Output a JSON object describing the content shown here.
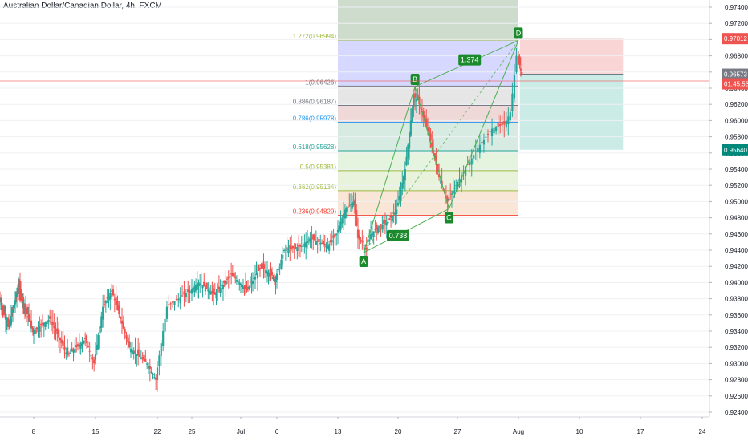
{
  "chart_data": {
    "type": "candlestick",
    "title": "Australian Dollar/Canadian Dollar, 4h, FXCM",
    "x_ticks": [
      "8",
      "15",
      "22",
      "25",
      "Jul",
      "6",
      "13",
      "20",
      "27",
      "Aug",
      "10",
      "17",
      "24"
    ],
    "y_ticks": [
      "0.97400",
      "0.97200",
      "0.97000",
      "0.96800",
      "0.96600",
      "0.96400",
      "0.96200",
      "0.96000",
      "0.95800",
      "0.95600",
      "0.95400",
      "0.95200",
      "0.95000",
      "0.94800",
      "0.94600",
      "0.94400",
      "0.94200",
      "0.94000",
      "0.93800",
      "0.93600",
      "0.93400",
      "0.93200",
      "0.93000",
      "0.92800",
      "0.92600",
      "0.92400"
    ],
    "ylim": [
      0.9232,
      0.9752
    ],
    "price_path": [
      {
        "x": "Jun 1",
        "y": 0.938
      },
      {
        "x": "Jun 3",
        "y": 0.9345
      },
      {
        "x": "Jun 5",
        "y": 0.9395
      },
      {
        "x": "Jun 8",
        "y": 0.934
      },
      {
        "x": "Jun 10",
        "y": 0.9355
      },
      {
        "x": "Jun 12",
        "y": 0.931
      },
      {
        "x": "Jun 14",
        "y": 0.933
      },
      {
        "x": "Jun 15",
        "y": 0.93
      },
      {
        "x": "Jun 16",
        "y": 0.937
      },
      {
        "x": "Jun 17",
        "y": 0.939
      },
      {
        "x": "Jun 19",
        "y": 0.932
      },
      {
        "x": "Jun 21",
        "y": 0.93
      },
      {
        "x": "Jun 22",
        "y": 0.928
      },
      {
        "x": "Jun 23",
        "y": 0.937
      },
      {
        "x": "Jun 24",
        "y": 0.938
      },
      {
        "x": "Jun 26",
        "y": 0.94
      },
      {
        "x": "Jun 28",
        "y": 0.9385
      },
      {
        "x": "Jun 30",
        "y": 0.941
      },
      {
        "x": "Jul 2",
        "y": 0.939
      },
      {
        "x": "Jul 4",
        "y": 0.942
      },
      {
        "x": "Jul 6",
        "y": 0.9405
      },
      {
        "x": "Jul 7",
        "y": 0.944
      },
      {
        "x": "Jul 9",
        "y": 0.9445
      },
      {
        "x": "Jul 10",
        "y": 0.9455
      },
      {
        "x": "Jul 12",
        "y": 0.9445
      },
      {
        "x": "Jul 13",
        "y": 0.946
      },
      {
        "x": "Jul 14",
        "y": 0.949
      },
      {
        "x": "Jul 15",
        "y": 0.95
      },
      {
        "x": "Jul 15.5",
        "y": 0.9455
      },
      {
        "x": "Jul 16",
        "y": 0.945
      },
      {
        "x": "Jul 16.5",
        "y": 0.944
      },
      {
        "x": "Jul 17",
        "y": 0.946
      },
      {
        "x": "Jul 18",
        "y": 0.947
      },
      {
        "x": "Jul 19",
        "y": 0.9475
      },
      {
        "x": "Jul 20",
        "y": 0.949
      },
      {
        "x": "Jul 21",
        "y": 0.954
      },
      {
        "x": "Jul 22",
        "y": 0.963
      },
      {
        "x": "Jul 22.5",
        "y": 0.9625
      },
      {
        "x": "Jul 23",
        "y": 0.961
      },
      {
        "x": "Jul 24",
        "y": 0.9575
      },
      {
        "x": "Jul 25",
        "y": 0.953
      },
      {
        "x": "Jul 26",
        "y": 0.95
      },
      {
        "x": "Jul 27",
        "y": 0.952
      },
      {
        "x": "Jul 28",
        "y": 0.9545
      },
      {
        "x": "Jul 29",
        "y": 0.957
      },
      {
        "x": "Jul 30",
        "y": 0.959
      },
      {
        "x": "Jul 31",
        "y": 0.9595
      },
      {
        "x": "Jul 31.5",
        "y": 0.961
      },
      {
        "x": "Aug 1",
        "y": 0.968
      },
      {
        "x": "Aug 1.3",
        "y": 0.967
      },
      {
        "x": "Aug 1.6",
        "y": 0.9657
      }
    ],
    "harmonic_points": [
      {
        "label": "A",
        "x": "Jul 16",
        "y": 0.9437
      },
      {
        "label": "B",
        "x": "Jul 22",
        "y": 0.9642
      },
      {
        "label": "C",
        "x": "Jul 26",
        "y": 0.9491
      },
      {
        "label": "D",
        "x": "Aug 1",
        "y": 0.9699
      }
    ],
    "ratio_labels": [
      {
        "text": "1.374",
        "x": "Jul 28",
        "y": 0.9675
      },
      {
        "text": "0.738",
        "x": "Jul 20",
        "y": 0.9458
      }
    ],
    "fib_levels": [
      {
        "label": "1.272(0.96994)",
        "value": 0.96994,
        "color": "#9fbc3f"
      },
      {
        "label": "1(0.96426)",
        "value": 0.96426,
        "color": "#787b86"
      },
      {
        "label": "0.886(0.96187)",
        "value": 0.96187,
        "color": "#787b86"
      },
      {
        "label": "0.786(0.95978)",
        "value": 0.95978,
        "color": "#2196f3"
      },
      {
        "label": "0.618(0.95628)",
        "value": 0.95628,
        "color": "#26a69a"
      },
      {
        "label": "0.5(0.95381)",
        "value": 0.95381,
        "color": "#9fbc3f"
      },
      {
        "label": "0.382(0.95134)",
        "value": 0.95134,
        "color": "#9fbc3f"
      },
      {
        "label": "0.236(0.94829)",
        "value": 0.94829,
        "color": "#f44336"
      }
    ],
    "position": {
      "stop": "0.97012",
      "entry": "0.96573",
      "target": "0.95640",
      "countdown": "01:45:53"
    },
    "colors": {
      "up": "#26a69a",
      "down": "#ef5350",
      "pattern": "#4caf50",
      "point_bg": "#1b8a2c",
      "stop_tag": "#ef5350",
      "target_tag": "#00897b",
      "entry_tag": "#787b86"
    }
  }
}
